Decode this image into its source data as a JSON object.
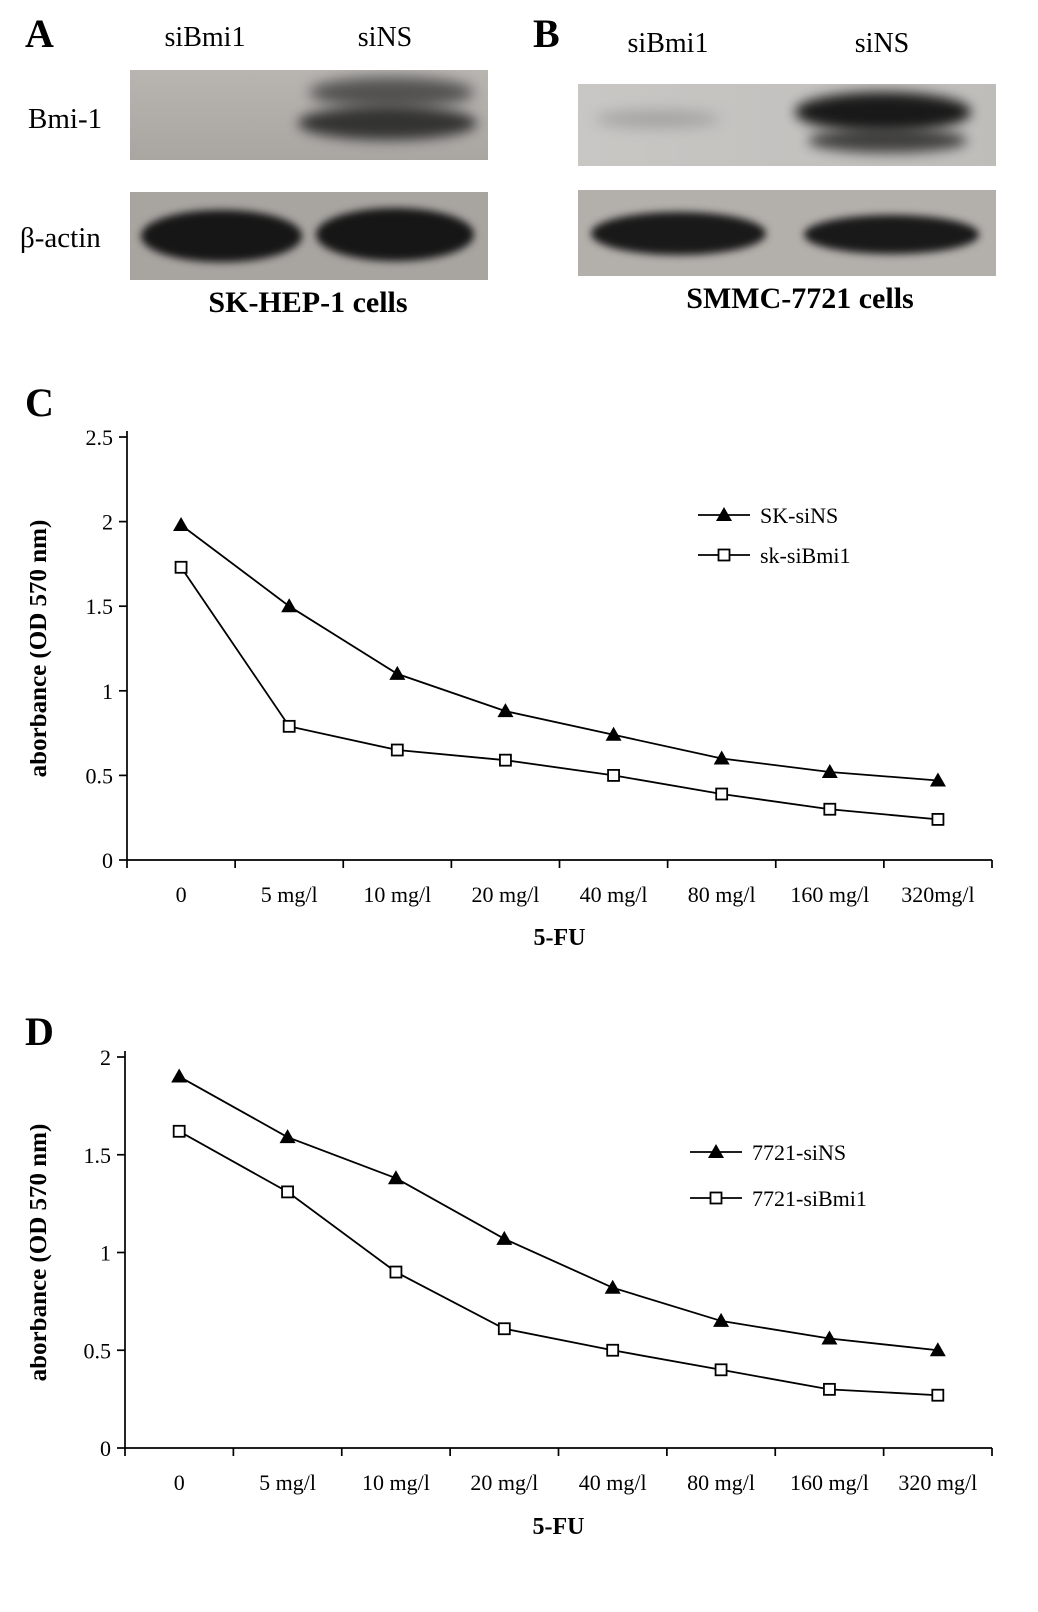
{
  "panels": {
    "a": {
      "letter": "A",
      "lane_labels": [
        "siBmi1",
        "siNS"
      ],
      "row_labels": [
        "Bmi-1",
        "β-actin"
      ],
      "caption": "SK-HEP-1 cells"
    },
    "b": {
      "letter": "B",
      "lane_labels": [
        "siBmi1",
        "siNS"
      ],
      "caption": "SMMC-7721 cells"
    },
    "c": {
      "letter": "C"
    },
    "d": {
      "letter": "D"
    }
  },
  "chart_data": [
    {
      "type": "line",
      "panel": "C",
      "categories": [
        "0",
        "5 mg/l",
        "10 mg/l",
        "20 mg/l",
        "40 mg/l",
        "80 mg/l",
        "160 mg/l",
        "320mg/l"
      ],
      "series": [
        {
          "name": "SK-siNS",
          "marker": "triangle",
          "values": [
            1.98,
            1.5,
            1.1,
            0.88,
            0.74,
            0.6,
            0.52,
            0.47
          ]
        },
        {
          "name": "sk-siBmi1",
          "marker": "square",
          "values": [
            1.73,
            0.79,
            0.65,
            0.59,
            0.5,
            0.39,
            0.3,
            0.24
          ]
        }
      ],
      "xlabel": "5-FU",
      "ylabel": "aborbance (OD 570 nm)",
      "ylim": [
        0,
        2.5
      ],
      "yticks": [
        0,
        0.5,
        1,
        1.5,
        2,
        2.5
      ],
      "grid": false,
      "legend_position": "upper right"
    },
    {
      "type": "line",
      "panel": "D",
      "categories": [
        "0",
        "5 mg/l",
        "10 mg/l",
        "20 mg/l",
        "40 mg/l",
        "80 mg/l",
        "160 mg/l",
        "320 mg/l"
      ],
      "series": [
        {
          "name": "7721-siNS",
          "marker": "triangle",
          "values": [
            1.9,
            1.59,
            1.38,
            1.07,
            0.82,
            0.65,
            0.56,
            0.5
          ]
        },
        {
          "name": "7721-siBmi1",
          "marker": "square",
          "values": [
            1.62,
            1.31,
            0.9,
            0.61,
            0.5,
            0.4,
            0.3,
            0.27
          ]
        }
      ],
      "xlabel": "5-FU",
      "ylabel": "aborbance (OD 570 nm)",
      "ylim": [
        0,
        2
      ],
      "yticks": [
        0,
        0.5,
        1,
        1.5,
        2
      ],
      "grid": false,
      "legend_position": "right"
    }
  ]
}
